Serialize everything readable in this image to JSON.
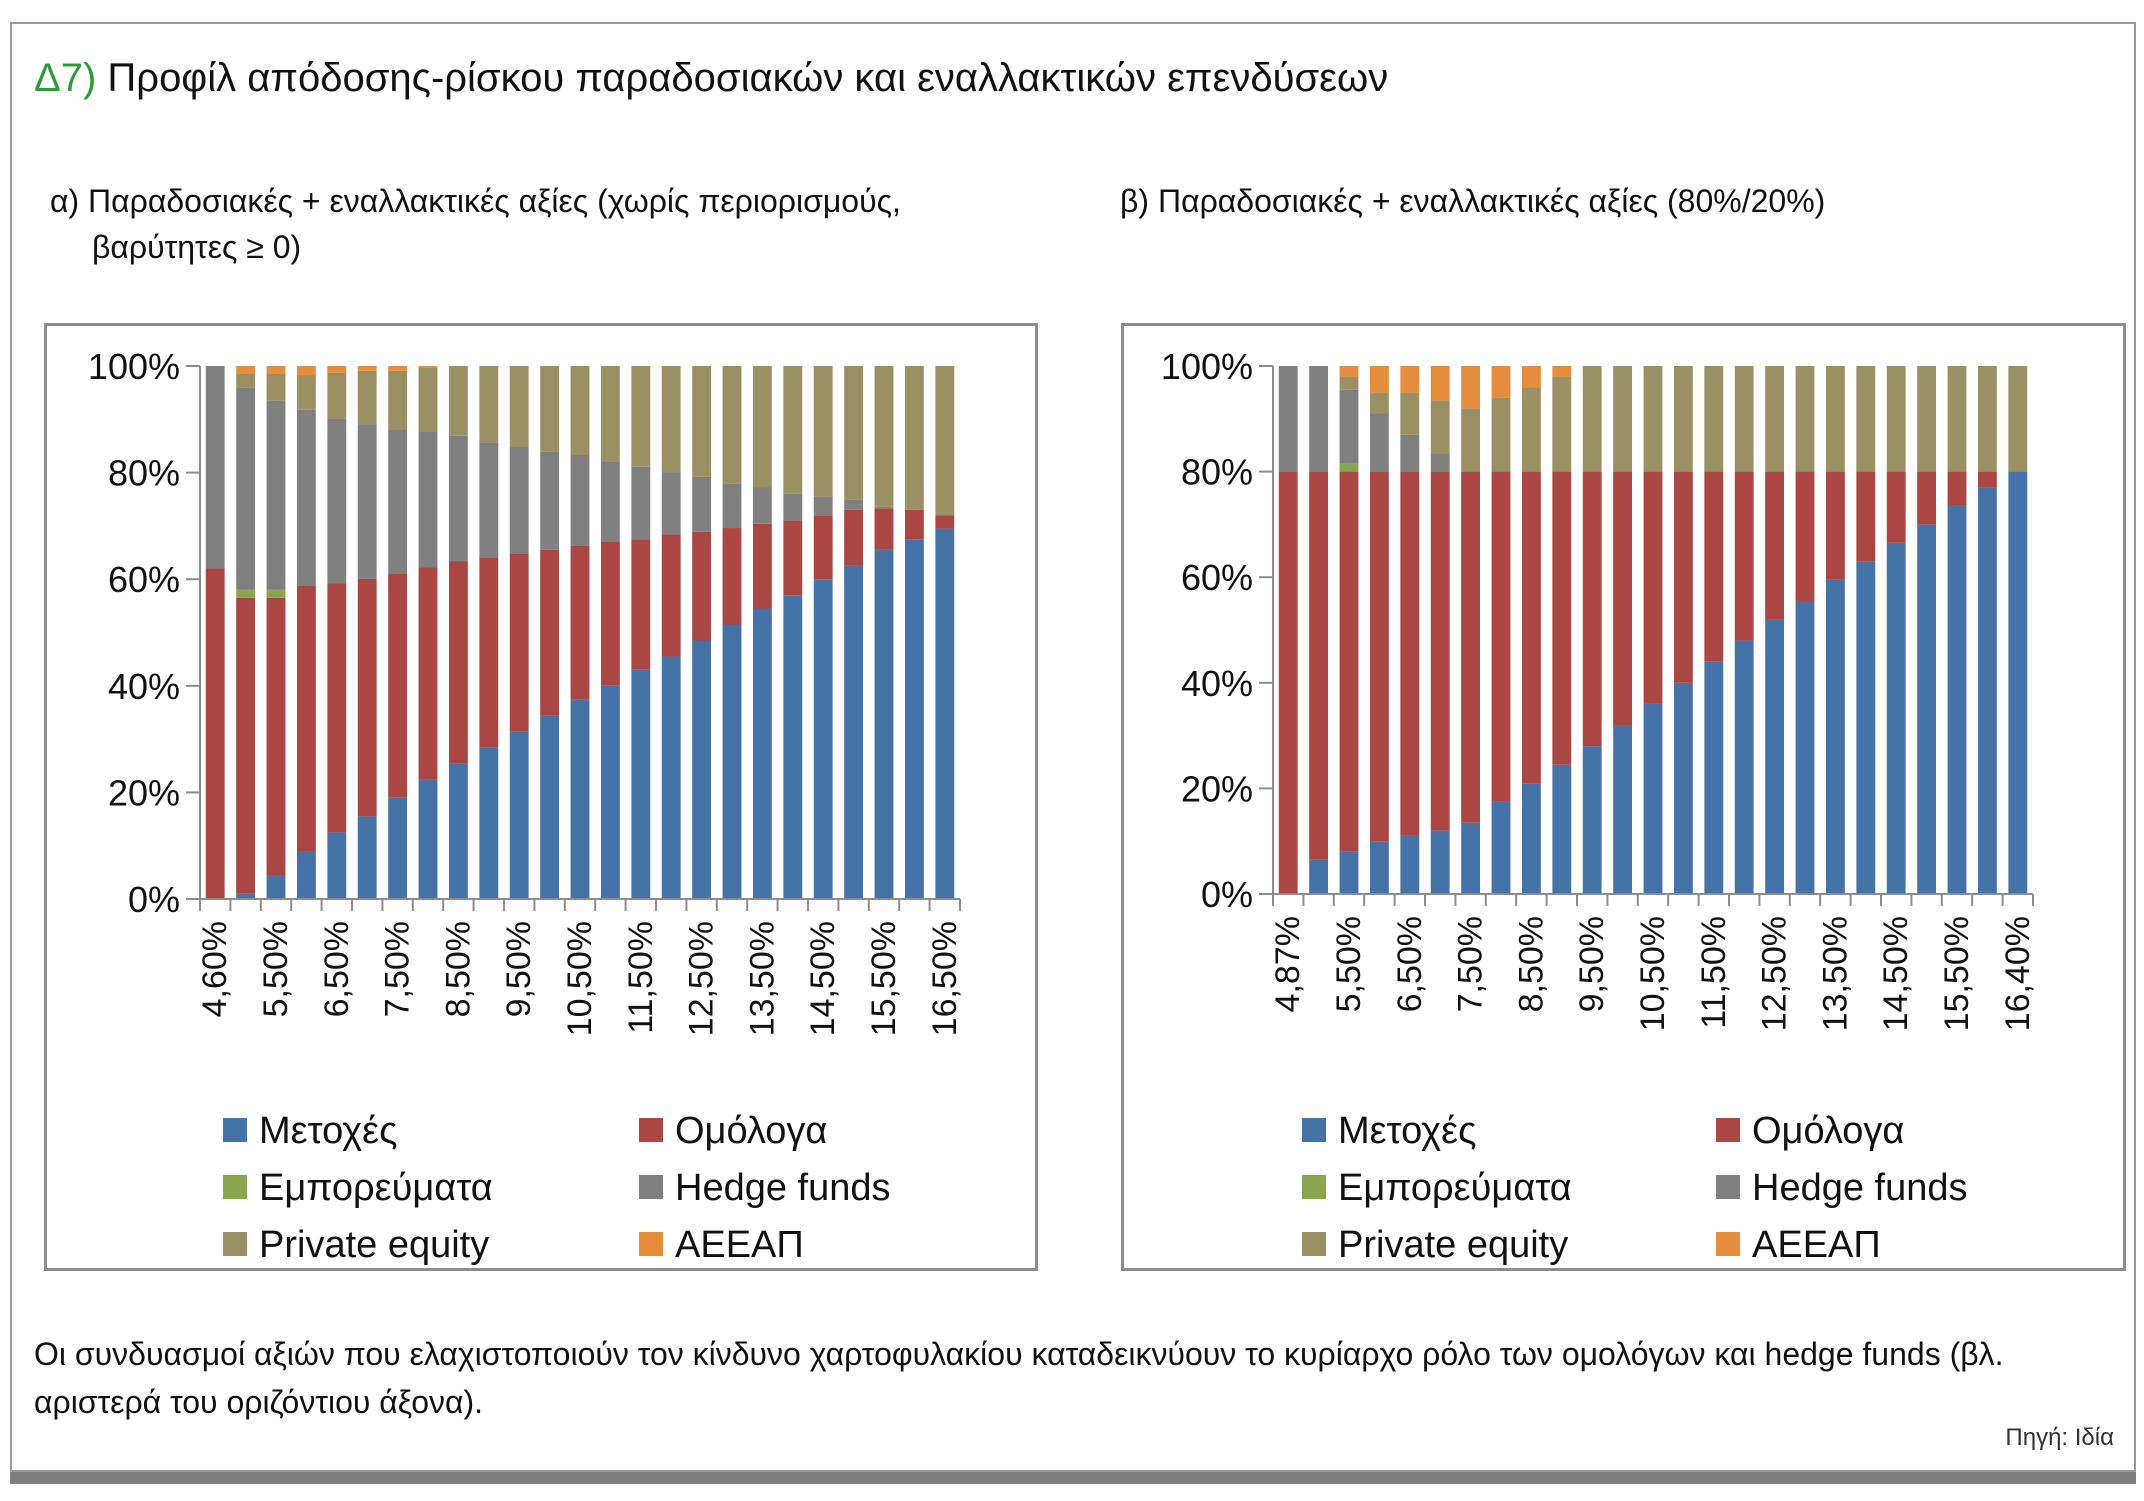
{
  "header": {
    "number": "Δ7)",
    "title": "Προφίλ απόδοσης-ρίσκου παραδοσιακών και εναλλακτικών επενδύσεων"
  },
  "colors": {
    "Μετοχές": "#4572a7",
    "Ομόλογα": "#aa4643",
    "Εμπορεύματα": "#89a54e",
    "Hedge funds": "#808080",
    "Private equity": "#9b9064",
    "ΑΕΕΑΠ": "#e38d3d"
  },
  "chart_data": [
    {
      "type": "bar",
      "stacked": true,
      "title": "α) Παραδοσιακές + εναλλακτικές αξίες (χωρίς περιορισμούς, βαρύτητες ≥ 0)",
      "title_lines": [
        "α) Παραδοσιακές + εναλλακτικές αξίες (χωρίς περιορισμούς,",
        "βαρύτητες ≥ 0)"
      ],
      "y_ticks": [
        "0%",
        "20%",
        "40%",
        "60%",
        "80%",
        "100%"
      ],
      "ylim": [
        0,
        100
      ],
      "categories": [
        "4,60%",
        "5,00%",
        "5,50%",
        "6,00%",
        "6,50%",
        "7,00%",
        "7,50%",
        "8,00%",
        "8,50%",
        "9,00%",
        "9,50%",
        "10,00%",
        "10,50%",
        "11,00%",
        "11,50%",
        "12,00%",
        "12,50%",
        "13,00%",
        "13,50%",
        "14,00%",
        "14,50%",
        "15,00%",
        "15,50%",
        "16,00%",
        "16,50%"
      ],
      "tick_labels": [
        "4,60%",
        "5,50%",
        "6,50%",
        "7,50%",
        "8,50%",
        "9,50%",
        "10,50%",
        "11,50%",
        "12,50%",
        "13,50%",
        "14,50%",
        "15,50%",
        "16,50%"
      ],
      "legend": [
        "Μετοχές",
        "Ομόλογα",
        "Εμπορεύματα",
        "Hedge funds",
        "Private equity",
        "ΑΕΕΑΠ"
      ],
      "series": [
        {
          "name": "Μετοχές",
          "values": [
            0,
            1,
            4.5,
            9,
            12.5,
            15.5,
            19,
            22.5,
            25.5,
            28.5,
            31.5,
            34.5,
            37.5,
            40,
            43,
            45.5,
            48.5,
            51.5,
            54.5,
            57,
            60,
            62.5,
            65.5,
            67.5,
            69.5
          ]
        },
        {
          "name": "Ομόλογα",
          "values": [
            62,
            55.5,
            52,
            49.8,
            46.7,
            44.6,
            42.1,
            39.7,
            37.9,
            35.6,
            33.3,
            31,
            28.8,
            27.1,
            24.5,
            22.9,
            20.4,
            18.1,
            15.9,
            14,
            12,
            10.5,
            7.8,
            5.5,
            2.5
          ]
        },
        {
          "name": "Εμπορεύματα",
          "values": [
            0,
            1.5,
            1.5,
            0,
            0,
            0,
            0,
            0,
            0,
            0,
            0,
            0,
            0,
            0,
            0,
            0,
            0,
            0,
            0,
            0,
            0,
            0,
            0,
            0,
            0
          ]
        },
        {
          "name": "Hedge funds",
          "values": [
            38,
            38,
            35.5,
            33,
            31,
            29,
            27,
            25.5,
            23.5,
            21.6,
            20,
            18.5,
            17,
            15,
            13.6,
            11.7,
            10.3,
            8.4,
            6.8,
            5,
            3.5,
            2,
            0.3,
            0,
            0
          ]
        },
        {
          "name": "Private equity",
          "values": [
            0,
            2.5,
            5,
            6.5,
            8.5,
            10,
            11,
            12,
            13.1,
            14.3,
            15.2,
            16,
            16.7,
            17.9,
            18.9,
            19.9,
            20.8,
            22,
            22.8,
            24,
            24.5,
            25,
            26.4,
            27,
            28
          ]
        },
        {
          "name": "ΑΕΕΑΠ",
          "values": [
            0,
            1.5,
            1.5,
            1.7,
            1.3,
            0.9,
            0.9,
            0.3,
            0,
            0,
            0,
            0,
            0,
            0,
            0,
            0,
            0,
            0,
            0,
            0,
            0,
            0,
            0,
            0,
            0
          ]
        }
      ]
    },
    {
      "type": "bar",
      "stacked": true,
      "title": "β) Παραδοσιακές + εναλλακτικές αξίες (80%/20%)",
      "title_lines": [
        "β) Παραδοσιακές + εναλλακτικές αξίες (80%/20%)"
      ],
      "y_ticks": [
        "0%",
        "20%",
        "40%",
        "60%",
        "80%",
        "100%"
      ],
      "ylim": [
        0,
        100
      ],
      "categories": [
        "4,87%",
        "5,00%",
        "5,50%",
        "6,00%",
        "6,50%",
        "7,00%",
        "7,50%",
        "8,00%",
        "8,50%",
        "9,00%",
        "9,50%",
        "10,00%",
        "10,50%",
        "11,00%",
        "11,50%",
        "12,00%",
        "12,50%",
        "13,00%",
        "13,50%",
        "14,00%",
        "14,50%",
        "15,00%",
        "15,50%",
        "16,00%",
        "16,40%"
      ],
      "tick_labels": [
        "4,87%",
        "5,50%",
        "6,50%",
        "7,50%",
        "8,50%",
        "9,50%",
        "10,50%",
        "11,50%",
        "12,50%",
        "13,50%",
        "14,50%",
        "15,50%",
        "16,40%"
      ],
      "legend": [
        "Μετοχές",
        "Ομόλογα",
        "Εμπορεύματα",
        "Hedge funds",
        "Private equity",
        "ΑΕΕΑΠ"
      ],
      "series": [
        {
          "name": "Μετοχές",
          "values": [
            0,
            6.5,
            8,
            10,
            11,
            12,
            13.5,
            17.5,
            21,
            24.5,
            28,
            32,
            36,
            40,
            44,
            48,
            52,
            55.5,
            59.5,
            63,
            66.5,
            70,
            73.5,
            77,
            80
          ]
        },
        {
          "name": "Ομόλογα",
          "values": [
            80,
            73.5,
            72,
            70,
            69,
            68,
            66.5,
            62.5,
            59,
            55.5,
            52,
            48,
            44,
            40,
            36,
            32,
            28,
            24.5,
            20.5,
            17,
            13.5,
            10,
            6.5,
            3,
            0
          ]
        },
        {
          "name": "Εμπορεύματα",
          "values": [
            0,
            0,
            1.5,
            0,
            0,
            0,
            0,
            0,
            0,
            0,
            0,
            0,
            0,
            0,
            0,
            0,
            0,
            0,
            0,
            0,
            0,
            0,
            0,
            0,
            0
          ]
        },
        {
          "name": "Hedge funds",
          "values": [
            20,
            20,
            14,
            11,
            7,
            3.5,
            0,
            0,
            0,
            0,
            0,
            0,
            0,
            0,
            0,
            0,
            0,
            0,
            0,
            0,
            0,
            0,
            0,
            0,
            0
          ]
        },
        {
          "name": "Private equity",
          "values": [
            0,
            0,
            2.5,
            4,
            8,
            10,
            12,
            14,
            16,
            18,
            20,
            20,
            20,
            20,
            20,
            20,
            20,
            20,
            20,
            20,
            20,
            20,
            20,
            20,
            20
          ]
        },
        {
          "name": "ΑΕΕΑΠ",
          "values": [
            0,
            0,
            2,
            5,
            5,
            6.5,
            8,
            6,
            4,
            2,
            0,
            0,
            0,
            0,
            0,
            0,
            0,
            0,
            0,
            0,
            0,
            0,
            0,
            0,
            0
          ]
        }
      ]
    }
  ],
  "footnote": "Οι συνδυασμοί αξιών που ελαχιστοποιούν τον κίνδυνο χαρτοφυλακίου καταδεικνύουν το κυρίαρχο ρόλο των ομολόγων και hedge funds (βλ. αριστερά του οριζόντιου άξονα).",
  "source": "Πηγή: Ιδία"
}
